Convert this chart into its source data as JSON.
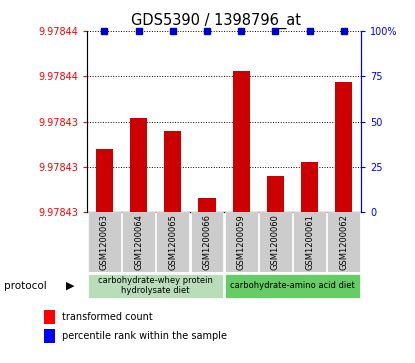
{
  "title": "GDS5390 / 1398796_at",
  "samples": [
    "GSM1200063",
    "GSM1200064",
    "GSM1200065",
    "GSM1200066",
    "GSM1200059",
    "GSM1200060",
    "GSM1200061",
    "GSM1200062"
  ],
  "bar_values": [
    35,
    52,
    45,
    8,
    78,
    20,
    28,
    72
  ],
  "percentile_values": [
    100,
    100,
    100,
    100,
    100,
    100,
    100,
    100
  ],
  "bar_color": "#cc0000",
  "percentile_color": "#0000cc",
  "ylim_right": [
    0,
    100
  ],
  "ytick_labels_left": [
    "9.97843",
    "9.97843",
    "9.97843",
    "9.97844",
    "9.97844"
  ],
  "ytick_positions_right": [
    0,
    25,
    50,
    75,
    100
  ],
  "ytick_labels_right": [
    "0",
    "25",
    "50",
    "75",
    "100%"
  ],
  "group1_label": "carbohydrate-whey protein\nhydrolysate diet",
  "group2_label": "carbohydrate-amino acid diet",
  "group1_color": "#b8ddb8",
  "group2_color": "#66cc66",
  "protocol_label": "protocol",
  "legend_bar_label": "transformed count",
  "legend_pct_label": "percentile rank within the sample",
  "tick_bg_color": "#cccccc"
}
